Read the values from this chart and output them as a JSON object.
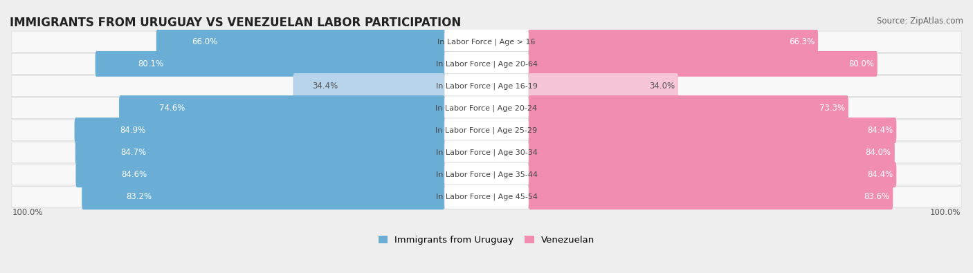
{
  "title": "IMMIGRANTS FROM URUGUAY VS VENEZUELAN LABOR PARTICIPATION",
  "source": "Source: ZipAtlas.com",
  "categories": [
    "In Labor Force | Age > 16",
    "In Labor Force | Age 20-64",
    "In Labor Force | Age 16-19",
    "In Labor Force | Age 20-24",
    "In Labor Force | Age 25-29",
    "In Labor Force | Age 30-34",
    "In Labor Force | Age 35-44",
    "In Labor Force | Age 45-54"
  ],
  "uruguay_values": [
    66.0,
    80.1,
    34.4,
    74.6,
    84.9,
    84.7,
    84.6,
    83.2
  ],
  "venezuelan_values": [
    66.3,
    80.0,
    34.0,
    73.3,
    84.4,
    84.0,
    84.4,
    83.6
  ],
  "uruguay_color": "#6aaed6",
  "venezuelan_color": "#f08db0",
  "uruguay_color_light": "#b8d4ea",
  "venezuelan_color_light": "#f7c5d8",
  "background_color": "#eeeeee",
  "row_bg_color": "#f8f8f8",
  "row_border_color": "#dddddd",
  "label_bg_color": "#ffffff",
  "max_value": 100.0,
  "legend_uruguay": "Immigrants from Uruguay",
  "legend_venezuelan": "Venezuelan",
  "title_fontsize": 12,
  "source_fontsize": 8.5,
  "bar_label_fontsize": 8.5,
  "category_fontsize": 8,
  "legend_fontsize": 9.5,
  "axis_label_fontsize": 8.5
}
